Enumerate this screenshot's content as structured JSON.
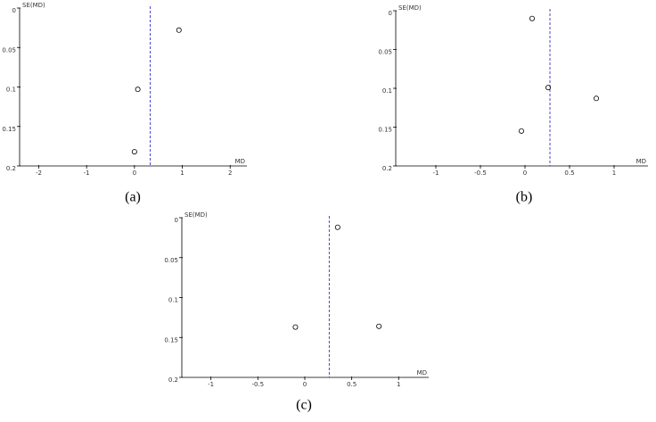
{
  "chart_data": [
    {
      "type": "scatter",
      "caption": "(a)",
      "x_label": "MD",
      "y_label": "SE(MD)",
      "x": [
        0.93,
        0.07,
        0.0
      ],
      "values": [
        0.028,
        0.103,
        0.182
      ],
      "reference_line": 0.33,
      "xlim": [
        -2.4,
        2.35
      ],
      "xticks": [
        -2,
        -1,
        0,
        1,
        2
      ],
      "ylim": [
        0,
        0.2
      ],
      "yticks": [
        0,
        0.05,
        0.1,
        0.15,
        0.2
      ],
      "y_inverted": true,
      "color": "#000000",
      "line_color": "#3333cc"
    },
    {
      "type": "scatter",
      "caption": "(b)",
      "x_label": "MD",
      "y_label": "SE(MD)",
      "x": [
        0.08,
        0.26,
        0.8,
        -0.04
      ],
      "values": [
        0.01,
        0.099,
        0.113,
        0.155
      ],
      "reference_line": 0.28,
      "xlim": [
        -1.45,
        1.38
      ],
      "xticks": [
        -1,
        -0.5,
        0,
        0.5,
        1
      ],
      "ylim": [
        0,
        0.2
      ],
      "yticks": [
        0,
        0.05,
        0.1,
        0.15,
        0.2
      ],
      "y_inverted": true,
      "color": "#000000",
      "line_color": "#3333cc"
    },
    {
      "type": "scatter",
      "caption": "(c)",
      "x_label": "MD",
      "y_label": "SE(MD)",
      "x": [
        0.35,
        -0.1,
        0.79
      ],
      "values": [
        0.012,
        0.137,
        0.136
      ],
      "reference_line": 0.26,
      "xlim": [
        -1.31,
        1.32
      ],
      "xticks": [
        -1,
        -0.5,
        0,
        0.5,
        1
      ],
      "ylim": [
        0,
        0.2
      ],
      "yticks": [
        0,
        0.05,
        0.1,
        0.15,
        0.2
      ],
      "y_inverted": true,
      "color": "#000000",
      "line_color": "#3333cc"
    }
  ]
}
